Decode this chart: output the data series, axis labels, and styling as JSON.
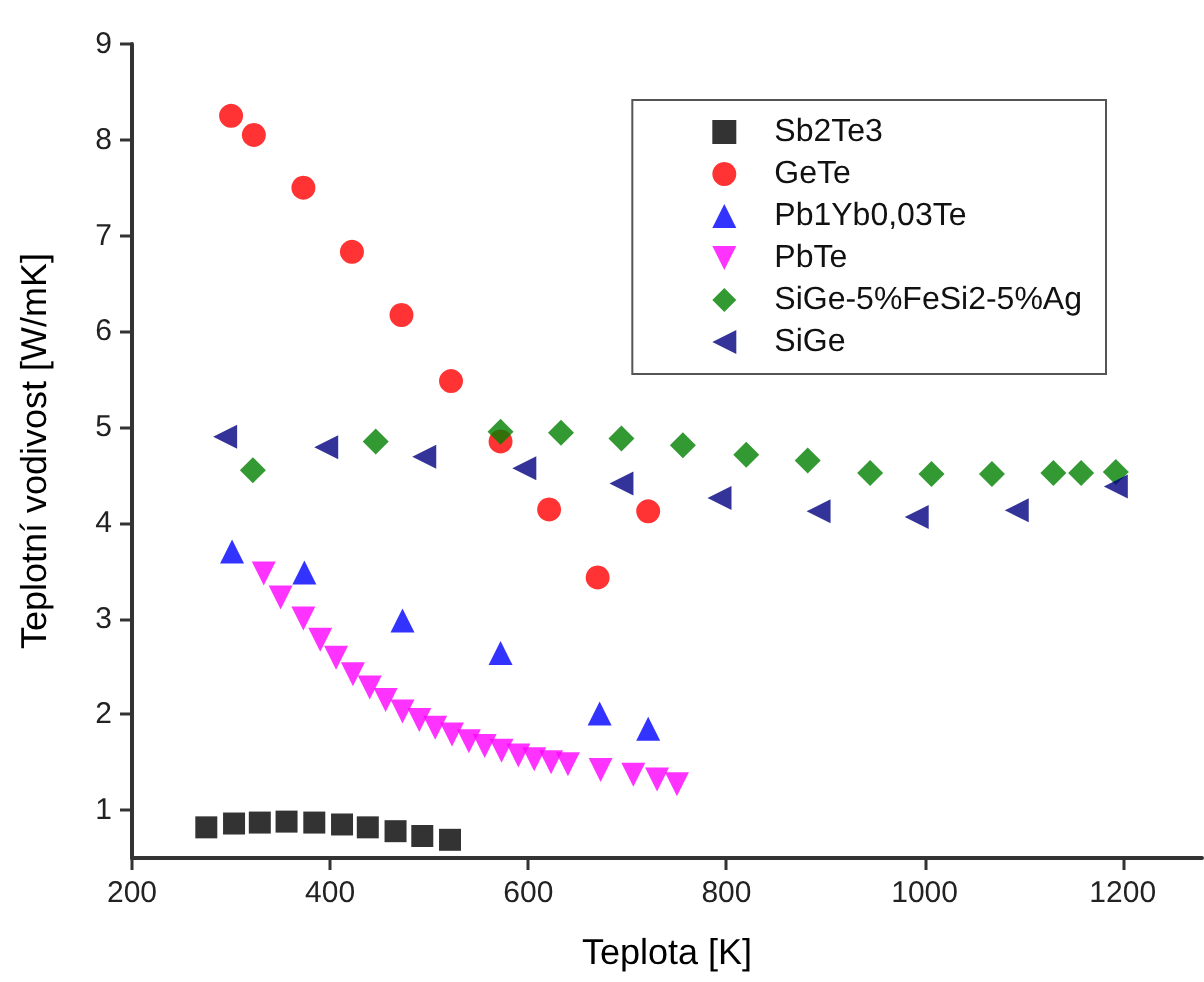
{
  "chart_data": {
    "type": "scatter",
    "xlabel": "Teplota [K]",
    "ylabel": "Teplotní vodivost [W/mK]",
    "xlim": [
      200,
      1280
    ],
    "ylim": [
      0.5,
      9
    ],
    "xticks": [
      200,
      400,
      600,
      800,
      1000,
      1200
    ],
    "yticks": [
      1,
      2,
      3,
      4,
      5,
      6,
      7,
      8,
      9
    ],
    "grid": false,
    "legend": "top right",
    "series": [
      {
        "name": "Sb2Te3",
        "color": "#000000",
        "marker": "square",
        "x": [
          275,
          303,
          329,
          356,
          384,
          412,
          438,
          466,
          493,
          521
        ],
        "values": [
          0.82,
          0.86,
          0.87,
          0.88,
          0.87,
          0.85,
          0.82,
          0.78,
          0.73,
          0.69
        ]
      },
      {
        "name": "GeTe",
        "color": "#ff0000",
        "marker": "circle",
        "x": [
          300,
          323,
          373,
          422,
          472,
          522,
          572,
          621,
          670,
          721
        ],
        "values": [
          8.25,
          8.05,
          7.5,
          6.83,
          6.17,
          5.48,
          4.85,
          4.14,
          3.43,
          4.12
        ]
      },
      {
        "name": "Pb1Yb0,03Te",
        "color": "#0000ff",
        "marker": "triangle",
        "x": [
          301,
          374,
          473,
          572,
          672,
          721
        ],
        "values": [
          3.7,
          3.48,
          2.98,
          2.64,
          2.01,
          1.85
        ]
      },
      {
        "name": "PbTe",
        "color": "#ff00ff",
        "marker": "triangle-down",
        "x": [
          333,
          350,
          373,
          390,
          406,
          423,
          440,
          456,
          473,
          490,
          506,
          523,
          540,
          556,
          573,
          590,
          606,
          623,
          640,
          673,
          706,
          730,
          750
        ],
        "values": [
          3.47,
          3.22,
          3.0,
          2.78,
          2.59,
          2.42,
          2.28,
          2.15,
          2.03,
          1.94,
          1.86,
          1.79,
          1.72,
          1.67,
          1.62,
          1.57,
          1.53,
          1.5,
          1.48,
          1.42,
          1.37,
          1.32,
          1.27
        ]
      },
      {
        "name": "SiGe-5%FeSi2-5%Ag",
        "color": "#008000",
        "marker": "diamond",
        "x": [
          322,
          446,
          572,
          633,
          694,
          756,
          820,
          882,
          945,
          1007,
          1068,
          1130,
          1158,
          1193
        ],
        "values": [
          4.55,
          4.85,
          4.95,
          4.94,
          4.88,
          4.81,
          4.71,
          4.65,
          4.52,
          4.51,
          4.51,
          4.52,
          4.52,
          4.53
        ]
      },
      {
        "name": "SiGe",
        "color": "#000080",
        "marker": "triangle-left",
        "x": [
          294,
          396,
          495,
          596,
          694,
          793,
          893,
          992,
          1093,
          1193
        ],
        "values": [
          4.9,
          4.79,
          4.69,
          4.57,
          4.41,
          4.26,
          4.12,
          4.06,
          4.13,
          4.38
        ]
      }
    ]
  }
}
